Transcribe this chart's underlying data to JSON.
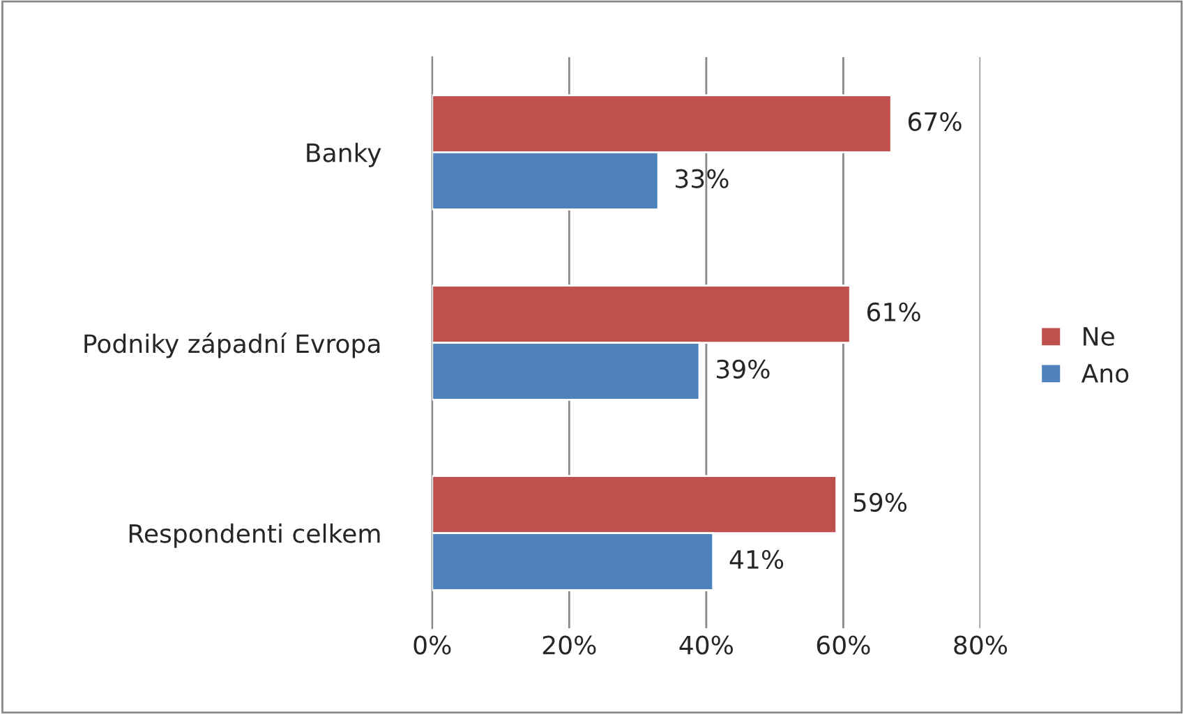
{
  "chart_data": {
    "type": "bar",
    "orientation": "horizontal",
    "categories": [
      "Banky",
      "Podniky západní Evropa",
      "Respondenti celkem"
    ],
    "series": [
      {
        "name": "Ne",
        "color": "#c0504d",
        "values": [
          67,
          61,
          59
        ],
        "value_labels": [
          "67%",
          "61%",
          "59%"
        ]
      },
      {
        "name": "Ano",
        "color": "#4f81bd",
        "values": [
          33,
          39,
          41
        ],
        "value_labels": [
          "33%",
          "39%",
          "41%"
        ]
      }
    ],
    "xlim": [
      0,
      80
    ],
    "xticks": [
      {
        "value": 0,
        "label": "0%"
      },
      {
        "value": 20,
        "label": "20%"
      },
      {
        "value": 40,
        "label": "40%"
      },
      {
        "value": 60,
        "label": "60%"
      },
      {
        "value": 80,
        "label": "80%"
      }
    ],
    "grid": "x",
    "legend": "right"
  }
}
